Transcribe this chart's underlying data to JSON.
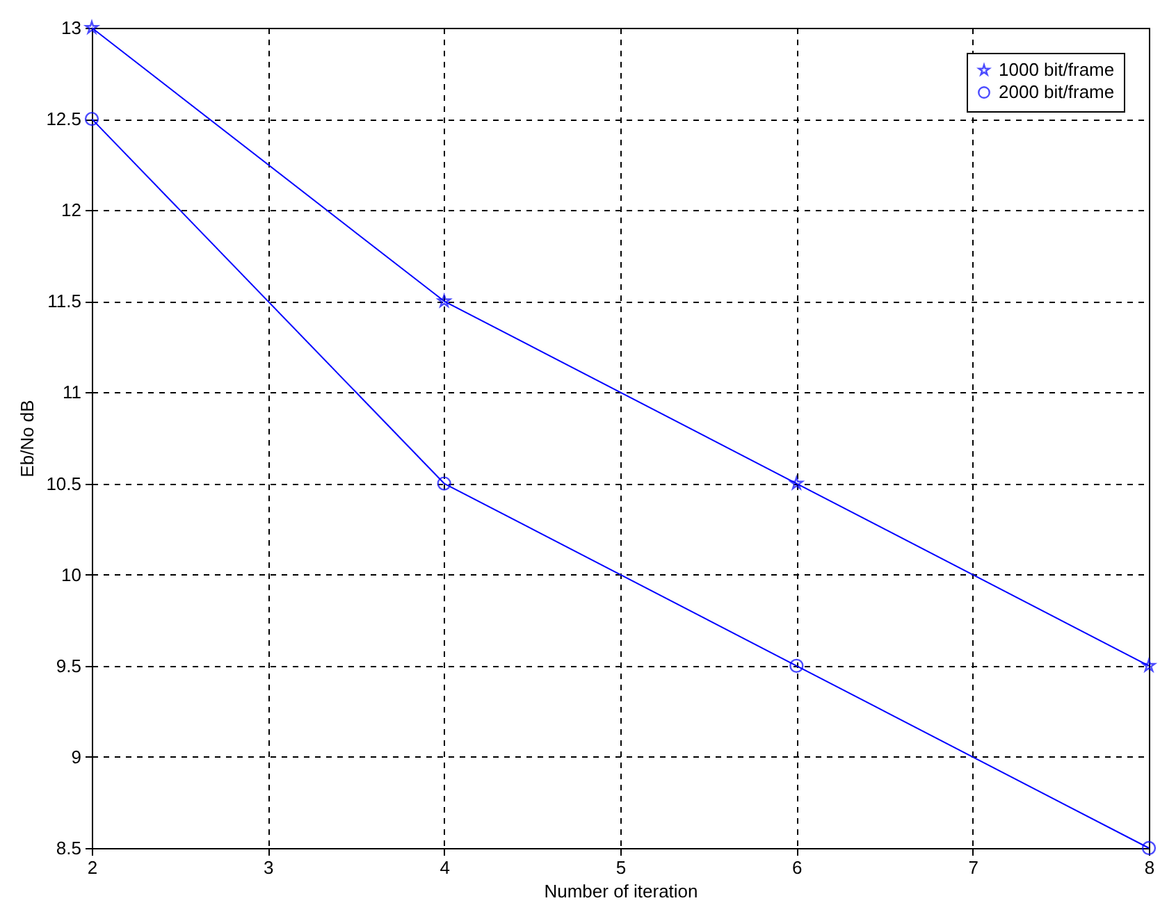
{
  "chart_data": {
    "type": "line",
    "xlabel": "Number of iteration",
    "ylabel": "Eb/No dB",
    "x": [
      2,
      4,
      6,
      8
    ],
    "series": [
      {
        "name": "1000 bit/frame",
        "color": "#0000ff",
        "marker": "star",
        "values": [
          13,
          11.5,
          10.5,
          9.5
        ]
      },
      {
        "name": "2000 bit/frame",
        "color": "#0000ff",
        "marker": "circle",
        "values": [
          12.5,
          10.5,
          9.5,
          8.5
        ]
      }
    ],
    "xlim": [
      2,
      8
    ],
    "xticks": [
      2,
      3,
      4,
      5,
      6,
      7,
      8
    ],
    "ylim": [
      8.5,
      13
    ],
    "yticks": [
      8.5,
      9,
      9.5,
      10,
      10.5,
      11,
      11.5,
      12,
      12.5,
      13
    ],
    "grid": true,
    "legend": "top right",
    "line_style": "solid"
  }
}
